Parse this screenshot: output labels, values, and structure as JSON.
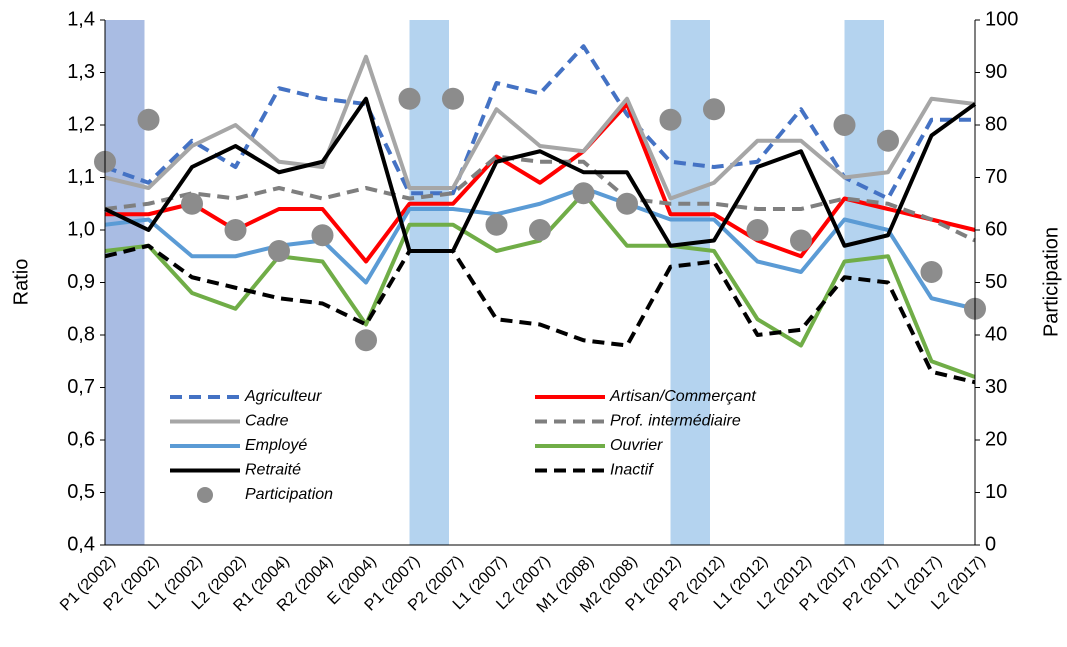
{
  "chart_data": {
    "type": "line",
    "y_label": "Ratio",
    "y2_label": "Participation",
    "categories": [
      "P1 (2002)",
      "P2 (2002)",
      "L1 (2002)",
      "L2 (2002)",
      "R1 (2004)",
      "R2 (2004)",
      "E (2004)",
      "P1 (2007)",
      "P2 (2007)",
      "L1 (2007)",
      "L2 (2007)",
      "M1 (2008)",
      "M2 (2008)",
      "P1 (2012)",
      "P2 (2012)",
      "L1 (2012)",
      "L2 (2012)",
      "P1 (2017)",
      "P2 (2017)",
      "L1 (2017)",
      "L2 (2017)"
    ],
    "ylim": [
      0.4,
      1.4
    ],
    "yticks": [
      {
        "value": 0.4,
        "label": "0,4"
      },
      {
        "value": 0.5,
        "label": "0,5"
      },
      {
        "value": 0.6,
        "label": "0,6"
      },
      {
        "value": 0.7,
        "label": "0,7"
      },
      {
        "value": 0.8,
        "label": "0,8"
      },
      {
        "value": 0.9,
        "label": "0,9"
      },
      {
        "value": 1.0,
        "label": "1,0"
      },
      {
        "value": 1.1,
        "label": "1,1"
      },
      {
        "value": 1.2,
        "label": "1,2"
      },
      {
        "value": 1.3,
        "label": "1,3"
      },
      {
        "value": 1.4,
        "label": "1,4"
      }
    ],
    "y2lim": [
      0,
      100
    ],
    "y2ticks": [
      0,
      10,
      20,
      30,
      40,
      50,
      60,
      70,
      80,
      90,
      100
    ],
    "grid": false,
    "series": [
      {
        "name": "Agriculteur",
        "color": "#4472c4",
        "dash": true,
        "values": [
          1.12,
          1.09,
          1.17,
          1.12,
          1.27,
          1.25,
          1.24,
          1.07,
          1.07,
          1.28,
          1.26,
          1.35,
          1.22,
          1.13,
          1.12,
          1.13,
          1.23,
          1.1,
          1.06,
          1.21,
          1.21
        ]
      },
      {
        "name": "Artisan/Commerçant",
        "color": "#ff0000",
        "dash": false,
        "values": [
          1.03,
          1.03,
          1.05,
          1.0,
          1.04,
          1.04,
          0.94,
          1.05,
          1.05,
          1.14,
          1.09,
          1.15,
          1.24,
          1.03,
          1.03,
          0.98,
          0.95,
          1.06,
          1.04,
          1.02,
          1.0
        ]
      },
      {
        "name": "Cadre",
        "color": "#a6a6a6",
        "dash": false,
        "values": [
          1.1,
          1.08,
          1.16,
          1.2,
          1.13,
          1.12,
          1.33,
          1.08,
          1.08,
          1.23,
          1.16,
          1.15,
          1.25,
          1.06,
          1.09,
          1.17,
          1.17,
          1.1,
          1.11,
          1.25,
          1.24
        ]
      },
      {
        "name": "Prof. intermédiaire",
        "color": "#7f7f7f",
        "dash": true,
        "values": [
          1.04,
          1.05,
          1.07,
          1.06,
          1.08,
          1.06,
          1.08,
          1.06,
          1.07,
          1.14,
          1.13,
          1.13,
          1.06,
          1.05,
          1.05,
          1.04,
          1.04,
          1.06,
          1.05,
          1.02,
          0.98
        ]
      },
      {
        "name": "Employé",
        "color": "#5b9bd5",
        "dash": false,
        "values": [
          1.01,
          1.02,
          0.95,
          0.95,
          0.97,
          0.98,
          0.9,
          1.04,
          1.04,
          1.03,
          1.05,
          1.08,
          1.05,
          1.02,
          1.02,
          0.94,
          0.92,
          1.02,
          1.0,
          0.87,
          0.85
        ]
      },
      {
        "name": "Ouvrier",
        "color": "#70ad47",
        "dash": false,
        "values": [
          0.96,
          0.97,
          0.88,
          0.85,
          0.95,
          0.94,
          0.82,
          1.01,
          1.01,
          0.96,
          0.98,
          1.07,
          0.97,
          0.97,
          0.96,
          0.83,
          0.78,
          0.94,
          0.95,
          0.75,
          0.72
        ]
      },
      {
        "name": "Retraité",
        "color": "#000000",
        "dash": false,
        "values": [
          1.04,
          1.0,
          1.12,
          1.16,
          1.11,
          1.13,
          1.25,
          0.96,
          0.96,
          1.13,
          1.15,
          1.11,
          1.11,
          0.97,
          0.98,
          1.12,
          1.15,
          0.97,
          0.99,
          1.18,
          1.24
        ]
      },
      {
        "name": "Inactif",
        "color": "#000000",
        "dash": true,
        "values": [
          0.95,
          0.97,
          0.91,
          0.89,
          0.87,
          0.86,
          0.82,
          0.96,
          0.96,
          0.83,
          0.82,
          0.79,
          0.78,
          0.93,
          0.94,
          0.8,
          0.81,
          0.91,
          0.9,
          0.73,
          0.71
        ]
      },
      {
        "name": "Participation",
        "color": "#8c8c8c",
        "type": "scatter",
        "axis": "y2",
        "values": [
          73,
          81,
          65,
          60,
          56,
          59,
          39,
          85,
          85,
          61,
          60,
          67,
          65,
          81,
          83,
          60,
          58,
          80,
          77,
          52,
          45
        ]
      }
    ]
  }
}
